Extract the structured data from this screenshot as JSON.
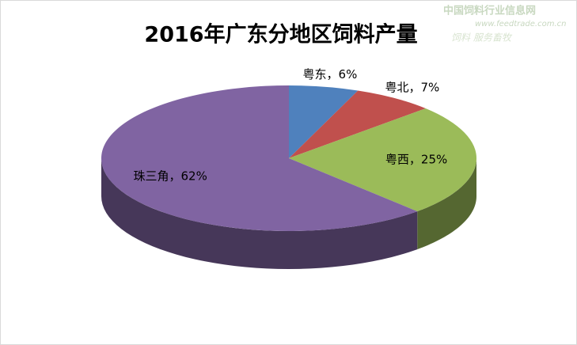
{
  "chart_data": {
    "type": "pie3d",
    "title": "2016年广东分地区饲料产量",
    "values": [
      6,
      7,
      25,
      62
    ],
    "value_labels": [
      "粤东，6%",
      "粤北，7%",
      "粤西，25%",
      "珠三角，62%"
    ],
    "colors": [
      "#4f81bd",
      "#c0504d",
      "#9bbb59",
      "#8064a2"
    ]
  },
  "watermark": [
    "中国饲料行业信息网",
    "www.feedtrade.com.cn",
    "饲料 服务畜牧"
  ]
}
